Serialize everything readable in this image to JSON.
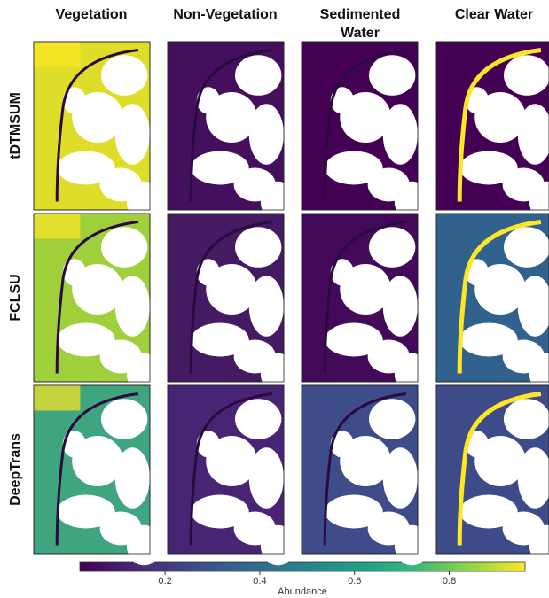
{
  "column_headers": [
    "Vegetation",
    "Non-Vegetation",
    "Sedimented Water",
    "Clear Water"
  ],
  "row_labels": [
    "tDTMSUM",
    "FCLSU",
    "DeepTrans"
  ],
  "colorbar": {
    "label": "Abundance",
    "range": [
      0.02,
      0.96
    ],
    "ticks": [
      0.2,
      0.4,
      0.6,
      0.8
    ]
  }
}
